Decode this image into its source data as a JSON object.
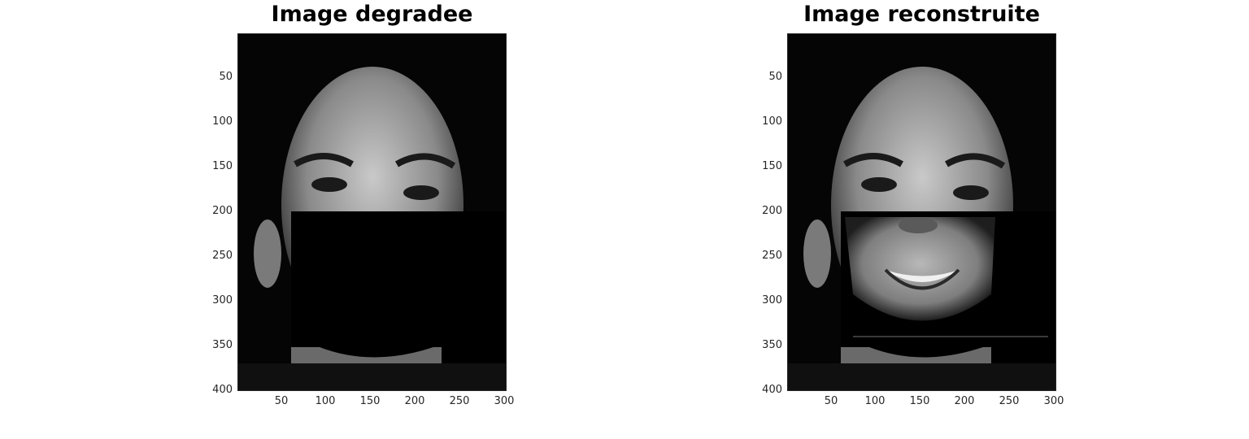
{
  "figure": {
    "panels": [
      {
        "title": "Image degradee",
        "x_ticks": [
          "50",
          "100",
          "150",
          "200",
          "250",
          "300"
        ],
        "y_ticks": [
          "50",
          "100",
          "150",
          "200",
          "250",
          "300",
          "350",
          "400"
        ],
        "image": "grayscale face photo with rectangular black occlusion over lower face"
      },
      {
        "title": "Image reconstruite",
        "x_ticks": [
          "50",
          "100",
          "150",
          "200",
          "250",
          "300"
        ],
        "y_ticks": [
          "50",
          "100",
          "150",
          "200",
          "250",
          "300",
          "350",
          "400"
        ],
        "image": "grayscale face photo with reconstructed smiling mouth region"
      }
    ],
    "axis": {
      "x_range": [
        0,
        300
      ],
      "y_range": [
        0,
        400
      ],
      "y_direction": "reversed"
    },
    "colors": {
      "background": "#ffffff",
      "image_bg": "#050505",
      "tick_text": "#262626"
    }
  }
}
